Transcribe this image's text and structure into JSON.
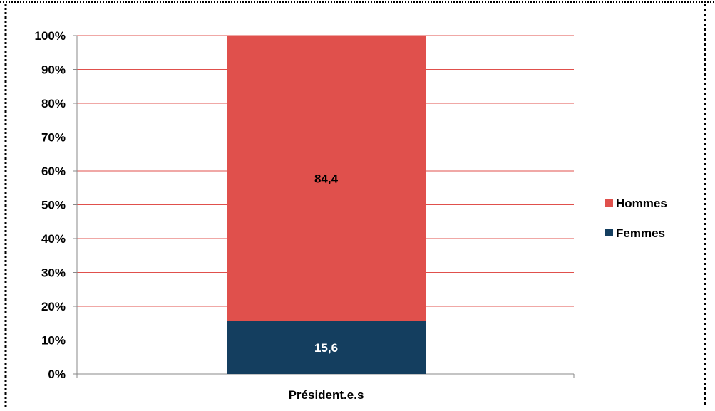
{
  "chart_data": {
    "type": "bar",
    "stacked": true,
    "categories": [
      "Président.e.s"
    ],
    "series": [
      {
        "name": "Femmes",
        "values": [
          15.6
        ],
        "color": "#143e5f",
        "label_color": "#ffffff",
        "label": "15,6"
      },
      {
        "name": "Hommes",
        "values": [
          84.4
        ],
        "color": "#e0504c",
        "label_color": "#000000",
        "label": "84,4"
      }
    ],
    "ylim": [
      0,
      100
    ],
    "y_ticks": [
      "0%",
      "10%",
      "20%",
      "30%",
      "40%",
      "50%",
      "60%",
      "70%",
      "80%",
      "90%",
      "100%"
    ],
    "grid": true,
    "grid_color": "#e0504c",
    "legend": {
      "placement": "right",
      "entries": [
        "Hommes",
        "Femmes"
      ]
    },
    "title": "",
    "xlabel": "",
    "ylabel": ""
  }
}
